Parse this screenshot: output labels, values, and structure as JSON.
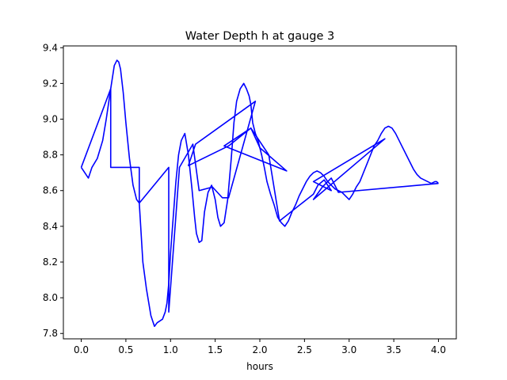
{
  "chart_data": {
    "type": "line",
    "title": "Water Depth h at gauge 3",
    "xlabel": "hours",
    "ylabel": "",
    "xlim": [
      -0.2,
      4.2
    ],
    "ylim": [
      7.77,
      9.41
    ],
    "xticks": [
      0.0,
      0.5,
      1.0,
      1.5,
      2.0,
      2.5,
      3.0,
      3.5,
      4.0
    ],
    "xtick_labels": [
      "0.0",
      "0.5",
      "1.0",
      "1.5",
      "2.0",
      "2.5",
      "3.0",
      "3.5",
      "4.0"
    ],
    "yticks": [
      7.8,
      8.0,
      8.2,
      8.4,
      8.6,
      8.8,
      9.0,
      9.2,
      9.4
    ],
    "ytick_labels": [
      "7.8",
      "8.0",
      "8.2",
      "8.4",
      "8.6",
      "8.8",
      "9.0",
      "9.2",
      "9.4"
    ],
    "grid": false,
    "legend": "none",
    "color": "#0000ff",
    "series": [
      {
        "x": [
          0.0,
          0.08,
          0.12,
          0.18,
          0.24,
          0.28,
          0.33,
          0.37,
          0.4,
          0.42,
          0.44,
          0.47,
          0.5,
          0.54,
          0.58,
          0.62,
          0.65,
          0.69,
          0.73,
          0.78,
          0.82,
          0.85,
          0.88,
          0.91,
          0.94,
          0.96,
          0.98,
          1.0,
          1.03,
          1.06,
          1.09,
          1.12,
          1.16,
          1.2,
          1.24,
          1.27,
          1.29,
          1.32,
          1.35,
          1.38,
          1.42,
          1.46,
          1.5,
          1.53,
          1.56,
          1.6,
          1.64,
          1.68,
          1.71,
          1.74,
          1.78,
          1.82,
          1.85,
          1.88,
          1.9,
          1.92,
          1.95,
          1.98,
          2.02,
          2.05,
          2.08,
          2.12,
          2.16,
          2.2,
          2.24,
          2.28,
          2.32,
          2.36,
          2.4,
          2.44,
          2.48,
          2.52,
          2.56,
          2.6,
          2.64,
          2.68,
          2.72,
          2.76,
          2.8,
          2.84,
          2.88,
          2.92,
          2.96,
          3.0,
          3.04,
          3.08,
          3.12,
          3.16,
          3.2,
          3.24,
          3.28,
          3.32,
          3.36,
          3.4,
          3.44,
          3.48,
          3.52,
          3.56,
          3.6,
          3.64,
          3.68,
          3.72,
          3.76,
          3.8,
          3.84,
          3.88,
          3.92,
          3.96,
          3.98,
          4.0
        ],
        "y": [
          8.73,
          8.67,
          8.73,
          8.78,
          8.88,
          9.0,
          9.17,
          9.3,
          9.33,
          9.32,
          9.28,
          9.15,
          8.98,
          8.78,
          8.63,
          8.55,
          8.53,
          8.2,
          8.05,
          7.9,
          7.84,
          7.86,
          7.87,
          7.88,
          7.92,
          7.97,
          8.08,
          8.25,
          8.45,
          8.65,
          8.8,
          8.88,
          8.92,
          8.8,
          8.61,
          8.45,
          8.36,
          8.31,
          8.32,
          8.48,
          8.59,
          8.63,
          8.55,
          8.45,
          8.4,
          8.42,
          8.55,
          8.78,
          8.98,
          9.1,
          9.17,
          9.2,
          9.17,
          9.13,
          9.08,
          8.98,
          8.92,
          8.88,
          8.8,
          8.73,
          8.65,
          8.58,
          8.52,
          8.45,
          8.42,
          8.4,
          8.43,
          8.48,
          8.52,
          8.57,
          8.61,
          8.65,
          8.68,
          8.7,
          8.71,
          8.7,
          8.68,
          8.65,
          8.63,
          8.61,
          8.6,
          8.59,
          8.57,
          8.55,
          8.58,
          8.62,
          8.65,
          8.7,
          8.75,
          8.8,
          8.85,
          8.88,
          8.92,
          8.95,
          8.96,
          8.95,
          8.92,
          8.88,
          8.84,
          8.8,
          8.76,
          8.72,
          8.69,
          8.67,
          8.66,
          8.65,
          8.64,
          8.65,
          8.65,
          8.64
        ]
      },
      {
        "x": [
          0.0,
          0.33,
          0.33,
          0.33,
          0.65,
          0.65,
          0.98,
          0.98,
          1.1,
          1.25,
          1.32,
          1.47,
          1.58,
          1.65,
          1.95,
          1.28,
          1.2,
          1.65,
          1.9,
          2.0,
          2.3,
          1.6,
          1.9,
          2.1,
          2.22,
          2.6,
          2.65,
          2.72,
          2.8,
          2.6,
          3.4,
          2.6,
          2.7,
          2.8,
          2.88,
          4.0
        ],
        "y": [
          8.73,
          9.17,
          8.73,
          8.73,
          8.73,
          8.53,
          8.73,
          7.92,
          8.73,
          8.86,
          8.6,
          8.62,
          8.56,
          8.56,
          9.1,
          8.86,
          8.74,
          8.85,
          8.95,
          8.84,
          8.71,
          8.85,
          8.95,
          8.8,
          8.43,
          8.58,
          8.63,
          8.66,
          8.6,
          8.65,
          8.89,
          8.55,
          8.62,
          8.67,
          8.59,
          8.64
        ]
      }
    ]
  }
}
